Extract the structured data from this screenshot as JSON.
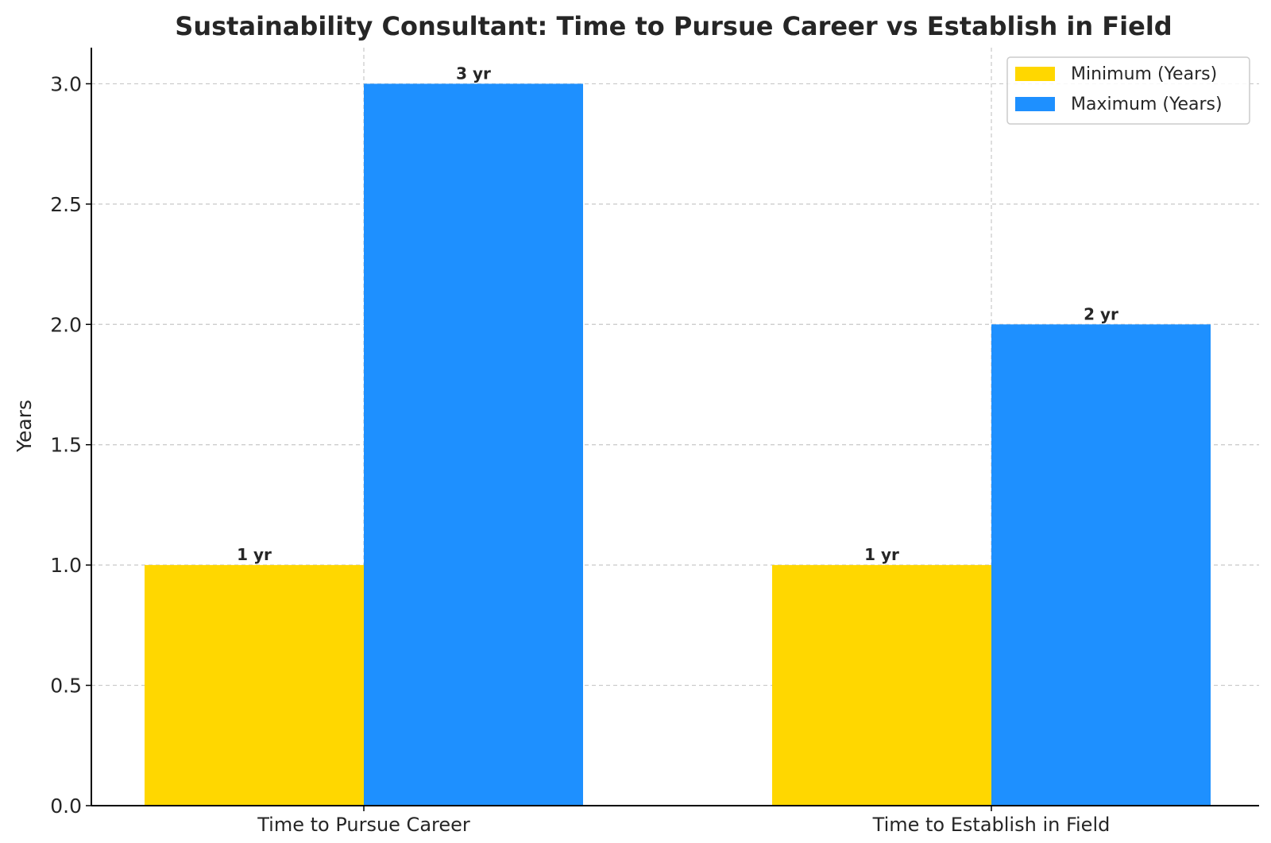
{
  "chart_data": {
    "type": "bar",
    "title": "Sustainability Consultant: Time to Pursue Career vs Establish in Field",
    "xlabel": "",
    "ylabel": "Years",
    "categories": [
      "Time to Pursue Career",
      "Time to Establish in Field"
    ],
    "series": [
      {
        "name": "Minimum (Years)",
        "values": [
          1,
          1
        ],
        "labels": [
          "1 yr",
          "1 yr"
        ],
        "color": "#FFD700"
      },
      {
        "name": "Maximum (Years)",
        "values": [
          3,
          2
        ],
        "labels": [
          "3 yr",
          "2 yr"
        ],
        "color": "#1E90FF"
      }
    ],
    "ylim": [
      0,
      3.15
    ],
    "yticks": [
      "0.0",
      "0.5",
      "1.0",
      "1.5",
      "2.0",
      "2.5",
      "3.0"
    ],
    "grid": true,
    "legend_position": "top-right"
  }
}
